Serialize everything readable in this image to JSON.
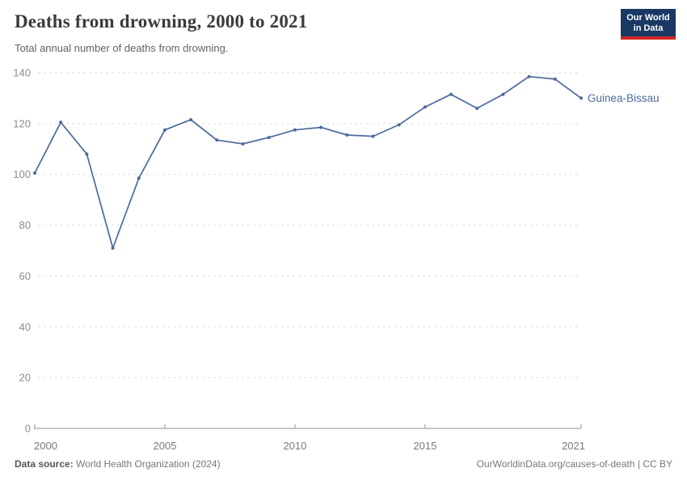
{
  "header": {
    "title": "Deaths from drowning, 2000 to 2021",
    "subtitle": "Total annual number of deaths from drowning.",
    "logo": {
      "line1": "Our World",
      "line2": "in Data",
      "bg_color": "#183963",
      "bar_color": "#CE261E"
    }
  },
  "chart_data": {
    "type": "line",
    "title": "Deaths from drowning, 2000 to 2021",
    "subtitle": "Total annual number of deaths from drowning.",
    "xlabel": "",
    "ylabel": "",
    "x": [
      2000,
      2001,
      2002,
      2003,
      2004,
      2005,
      2006,
      2007,
      2008,
      2009,
      2010,
      2011,
      2012,
      2013,
      2014,
      2015,
      2016,
      2017,
      2018,
      2019,
      2020,
      2021
    ],
    "series": [
      {
        "name": "Guinea-Bissau",
        "color": "#4C6A9C",
        "values": [
          100.5,
          120.5,
          108,
          71,
          98.5,
          117.5,
          121.5,
          113.5,
          112,
          114.5,
          117.5,
          118.5,
          115.5,
          115,
          119.5,
          126.5,
          131.5,
          126,
          131.5,
          138.5,
          137.5,
          130
        ]
      }
    ],
    "ylim": [
      0,
      140
    ],
    "yticks": [
      0,
      20,
      40,
      60,
      80,
      100,
      120,
      140
    ],
    "xticks": [
      2000,
      2005,
      2010,
      2015,
      2021
    ],
    "grid": "horizontal-dashed",
    "legend": "end-of-line-label"
  },
  "footer": {
    "datasource_label": "Data source:",
    "datasource_value": "World Health Organization (2024)",
    "credit_link": "OurWorldinData.org/causes-of-death",
    "credit_separator": " | ",
    "credit_license": "CC BY"
  },
  "colors": {
    "line": "#4C6A9C",
    "grid": "#DEDEDE",
    "axis": "#8F8F8F",
    "y_tick_label": "#8B8B8B",
    "x_tick_label": "#787878",
    "title": "#3B3B3B",
    "subtitle": "#636363",
    "footer": "#777777"
  }
}
